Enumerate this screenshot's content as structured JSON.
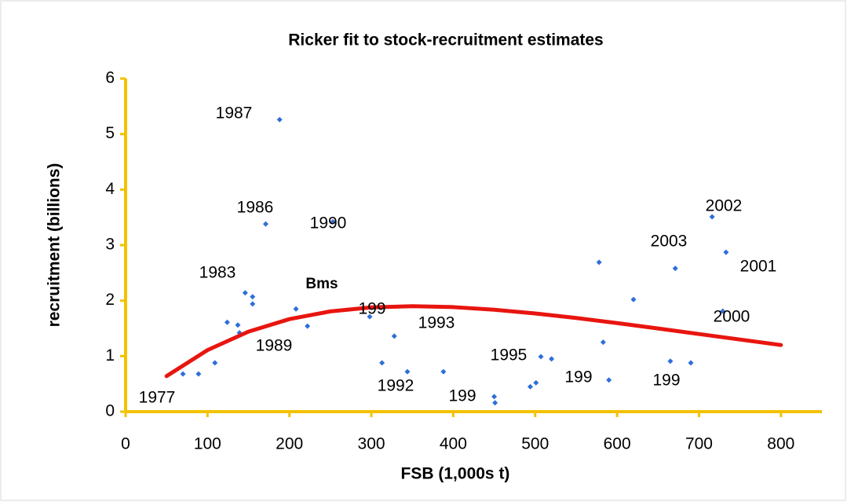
{
  "chart_data": {
    "type": "scatter",
    "title": "Ricker fit to stock-recruitment estimates",
    "x_label": "FSB (1,000s t)",
    "y_label": "recruitment (billions)",
    "xlim": [
      0,
      850
    ],
    "ylim": [
      0,
      6
    ],
    "xticks": [
      0,
      100,
      200,
      300,
      400,
      500,
      600,
      700,
      800
    ],
    "yticks": [
      0,
      1,
      2,
      3,
      4,
      5,
      6
    ],
    "axis_color": "#f2c200",
    "series": [
      {
        "type": "scatter",
        "color": "#2e6ed8",
        "x": [
          70,
          89,
          109,
          124,
          137,
          139,
          146,
          155,
          155,
          171,
          188,
          208,
          222,
          253,
          298,
          313,
          328,
          344,
          388,
          451,
          450,
          494,
          501,
          507,
          520,
          578,
          583,
          590,
          620,
          665,
          671,
          690,
          716,
          729,
          733
        ],
        "values": [
          0.68,
          0.68,
          0.88,
          1.61,
          1.56,
          1.42,
          2.14,
          2.07,
          1.94,
          3.38,
          5.26,
          1.85,
          1.54,
          3.42,
          1.71,
          0.88,
          1.36,
          0.72,
          0.72,
          0.16,
          0.27,
          0.45,
          0.52,
          0.99,
          0.95,
          2.69,
          1.25,
          0.57,
          2.02,
          0.91,
          2.58,
          0.88,
          3.51,
          1.81,
          2.87
        ]
      },
      {
        "type": "line",
        "color": "#e8150f",
        "x": [
          50,
          100,
          150,
          200,
          250,
          300,
          350,
          400,
          450,
          500,
          550,
          600,
          650,
          700,
          750,
          800
        ],
        "values": [
          0.64,
          1.109,
          1.442,
          1.667,
          1.806,
          1.879,
          1.9,
          1.883,
          1.836,
          1.769,
          1.687,
          1.595,
          1.498,
          1.398,
          1.299,
          1.2
        ]
      }
    ],
    "annotations": [
      "1987",
      "1986",
      "1990",
      "1983",
      "Bms",
      "199",
      "1993",
      "1989",
      "1992",
      "199",
      "1995",
      "199",
      "199",
      "2003",
      "2002",
      "2001",
      "2000",
      "1977"
    ]
  }
}
